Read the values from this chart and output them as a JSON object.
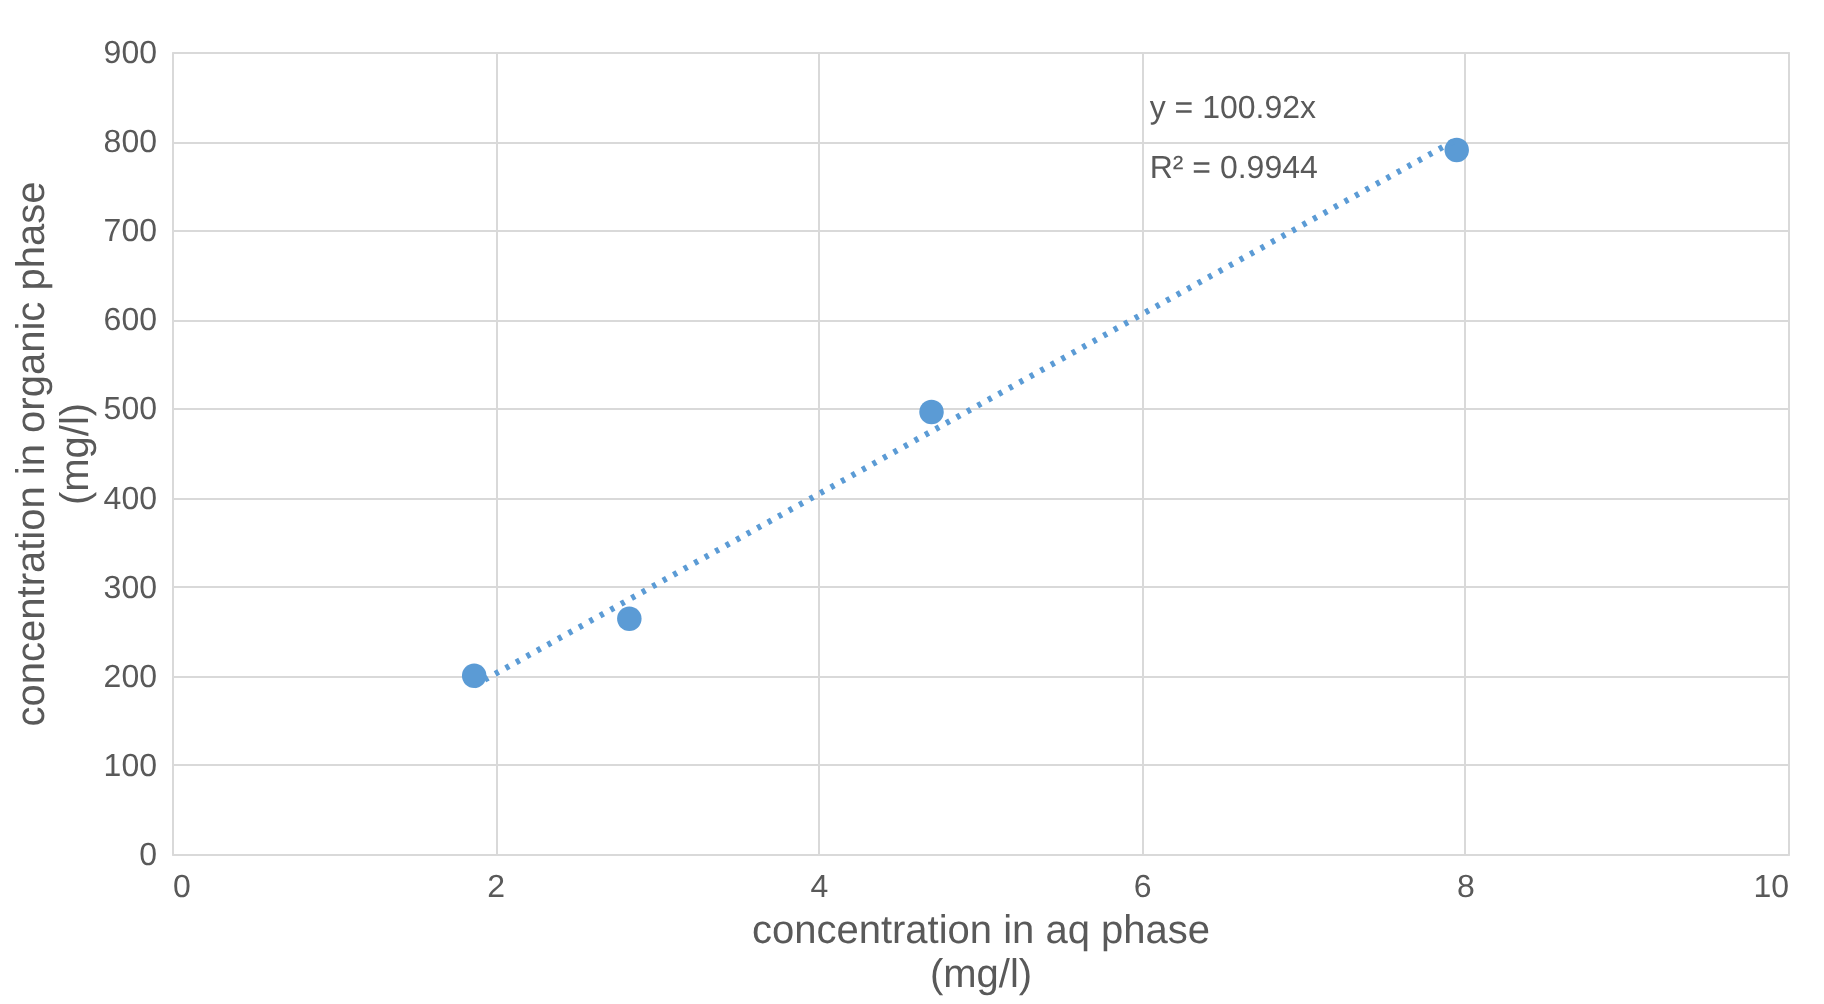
{
  "chart_data": {
    "type": "scatter",
    "xlabel": "concentration in aq phase (mg/l)",
    "ylabel": "concentration in organic phase (mg/l)",
    "series": [
      {
        "color": "#5b9bd5",
        "x": [
          1.87,
          2.83,
          4.7,
          7.95
        ],
        "values": [
          200,
          264,
          496,
          790
        ],
        "marker": "circle"
      },
      {
        "type": "line",
        "color": "#5b9bd5",
        "x": [
          1.87,
          7.95
        ],
        "values": [
          189,
          802
        ],
        "line_style": "dotted"
      }
    ],
    "annotations": [
      "y = 100.92x",
      "R² = 0.9944"
    ],
    "xlim": [
      0,
      10
    ],
    "xticks": [
      0,
      2,
      4,
      6,
      8,
      10
    ],
    "ylim": [
      0,
      900
    ],
    "yticks": [
      0,
      100,
      200,
      300,
      400,
      500,
      600,
      700,
      800,
      900
    ],
    "grid": true
  }
}
